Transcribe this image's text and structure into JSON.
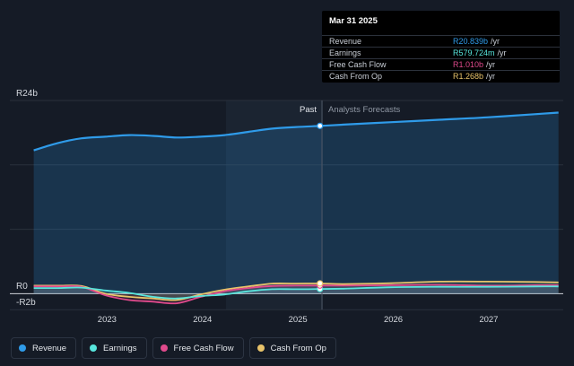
{
  "chart_data": {
    "type": "area",
    "currency_prefix": "R",
    "y_axis": {
      "top_label": "R24b",
      "zero_label": "R0",
      "bottom_label": "-R2b",
      "ylim": [
        -2,
        24
      ],
      "unit": "billion"
    },
    "x_axis": {
      "tick_labels": [
        "2023",
        "2024",
        "2025",
        "2026",
        "2027"
      ]
    },
    "period_labels": {
      "past": "Past",
      "forecast": "Analysts Forecasts"
    },
    "grid": true,
    "divider_date": "Mar 31 2025",
    "series": [
      {
        "name": "Revenue",
        "color": "#2f9be9",
        "fill": true,
        "x": [
          2022.25,
          2022.5,
          2022.75,
          2023.0,
          2023.25,
          2023.5,
          2023.75,
          2024.0,
          2024.25,
          2024.5,
          2024.75,
          2025.0,
          2025.25,
          2025.5,
          2026.0,
          2026.5,
          2027.0,
          2027.5,
          2027.75
        ],
        "values": [
          17.8,
          18.7,
          19.3,
          19.5,
          19.7,
          19.6,
          19.4,
          19.5,
          19.7,
          20.1,
          20.5,
          20.7,
          20.84,
          21.0,
          21.3,
          21.6,
          21.9,
          22.3,
          22.5
        ]
      },
      {
        "name": "Earnings",
        "color": "#58e6dd",
        "fill": false,
        "x": [
          2022.25,
          2022.5,
          2022.75,
          2023.0,
          2023.25,
          2023.5,
          2023.75,
          2024.0,
          2024.25,
          2024.5,
          2024.75,
          2025.0,
          2025.25,
          2025.5,
          2026.0,
          2026.5,
          2027.0,
          2027.5,
          2027.75
        ],
        "values": [
          0.7,
          0.7,
          0.75,
          0.4,
          0.1,
          -0.4,
          -0.6,
          -0.3,
          -0.1,
          0.3,
          0.55,
          0.55,
          0.58,
          0.62,
          0.8,
          0.85,
          0.85,
          0.9,
          0.9
        ]
      },
      {
        "name": "Free Cash Flow",
        "color": "#e04a8c",
        "fill": false,
        "x": [
          2022.25,
          2022.5,
          2022.75,
          2023.0,
          2023.25,
          2023.5,
          2023.75,
          2024.0,
          2024.25,
          2024.5,
          2024.75,
          2025.0,
          2025.25,
          2025.5,
          2026.0,
          2026.5,
          2027.0,
          2027.5,
          2027.75
        ],
        "values": [
          0.9,
          0.9,
          0.85,
          -0.2,
          -0.8,
          -1.0,
          -1.2,
          -0.4,
          0.3,
          0.7,
          0.95,
          1.0,
          1.01,
          1.0,
          1.05,
          1.1,
          1.0,
          1.05,
          1.05
        ]
      },
      {
        "name": "Cash From Op",
        "color": "#e8c36a",
        "fill": false,
        "x": [
          2022.25,
          2022.5,
          2022.75,
          2023.0,
          2023.25,
          2023.5,
          2023.75,
          2024.0,
          2024.25,
          2024.5,
          2024.75,
          2025.0,
          2025.25,
          2025.5,
          2026.0,
          2026.5,
          2027.0,
          2027.5,
          2027.75
        ],
        "values": [
          1.0,
          1.0,
          0.95,
          0.0,
          -0.4,
          -0.6,
          -0.8,
          -0.1,
          0.5,
          0.9,
          1.25,
          1.25,
          1.27,
          1.2,
          1.3,
          1.5,
          1.5,
          1.45,
          1.4
        ]
      }
    ]
  },
  "tooltip": {
    "date": "Mar 31 2025",
    "rows": [
      {
        "label": "Revenue",
        "value": "R20.839b",
        "unit": "/yr",
        "color": "#2f9be9"
      },
      {
        "label": "Earnings",
        "value": "R579.724m",
        "unit": "/yr",
        "color": "#58e6dd"
      },
      {
        "label": "Free Cash Flow",
        "value": "R1.010b",
        "unit": "/yr",
        "color": "#e04a8c"
      },
      {
        "label": "Cash From Op",
        "value": "R1.268b",
        "unit": "/yr",
        "color": "#e8c36a"
      }
    ]
  },
  "legend": [
    {
      "label": "Revenue",
      "color": "#2f9be9"
    },
    {
      "label": "Earnings",
      "color": "#58e6dd"
    },
    {
      "label": "Free Cash Flow",
      "color": "#e04a8c"
    },
    {
      "label": "Cash From Op",
      "color": "#e8c36a"
    }
  ]
}
